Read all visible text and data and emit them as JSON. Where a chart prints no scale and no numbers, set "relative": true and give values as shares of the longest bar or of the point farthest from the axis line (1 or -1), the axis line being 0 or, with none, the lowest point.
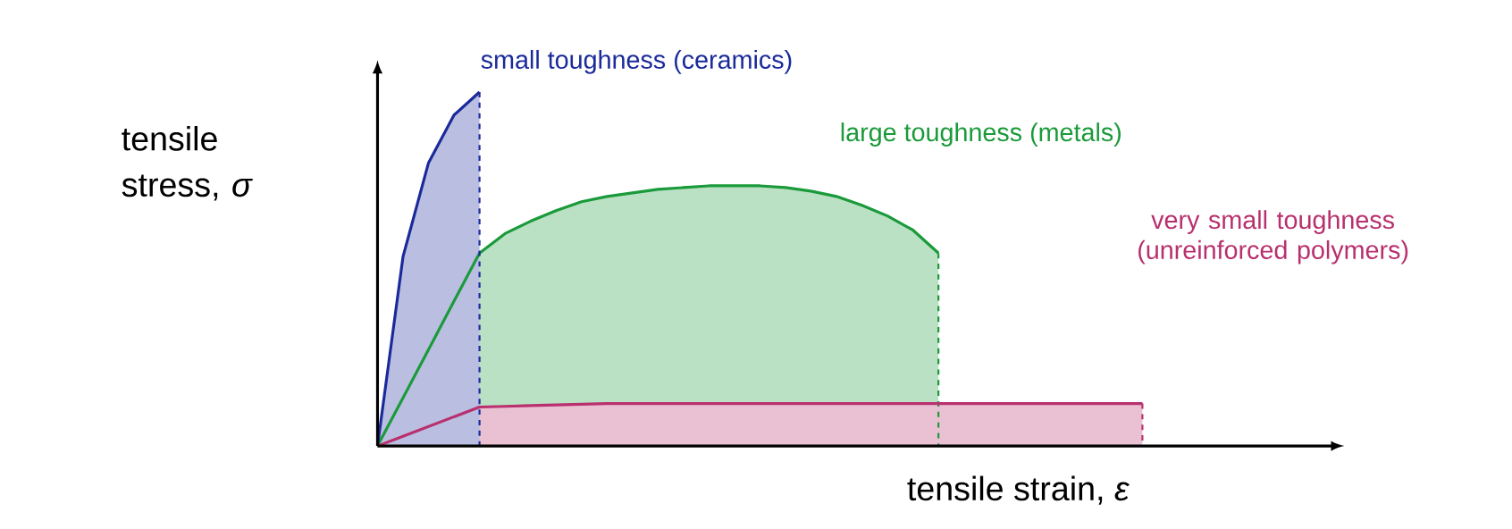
{
  "chart_data": {
    "type": "area",
    "relative": true,
    "xlabel": "tensile strain, *ε*",
    "ylabel": "tensile stress, *σ*",
    "categories": [
      null,
      null,
      null,
      null,
      null,
      null,
      null,
      null,
      null,
      null,
      null,
      null,
      null,
      null,
      null,
      null,
      null,
      null,
      null,
      null,
      null,
      null,
      null,
      null,
      null,
      null,
      null,
      null,
      null,
      null,
      null,
      null,
      null,
      null,
      null,
      null,
      null,
      null
    ],
    "series": [
      {
        "name": "large toughness (metals)",
        "color": "#1a9a3a",
        "values": [
          0,
          0.136,
          0.272,
          0.409,
          0.545,
          0.6,
          0.635,
          0.665,
          0.69,
          0.705,
          0.715,
          0.725,
          0.73,
          0.735,
          0.735,
          0.735,
          0.73,
          0.72,
          0.705,
          0.68,
          0.65,
          0.61,
          0.545,
          null,
          null,
          null,
          null,
          null,
          null,
          null,
          null,
          null,
          null,
          null,
          null,
          null,
          null,
          null
        ]
      },
      {
        "name": "very small toughness (unreinforced polymers)",
        "color": "#b8306e",
        "values": [
          0,
          0.0275,
          0.055,
          0.0825,
          0.11,
          0.112,
          0.114,
          0.116,
          0.118,
          0.12,
          0.12,
          0.12,
          0.12,
          0.12,
          0.12,
          0.12,
          0.12,
          0.12,
          0.12,
          0.12,
          0.12,
          0.12,
          0.12,
          0.12,
          0.12,
          0.12,
          0.12,
          0.12,
          0.12,
          0.12,
          0.12,
          null,
          null,
          null,
          null,
          null,
          null,
          null
        ]
      },
      {
        "name": "small toughness (ceramics)",
        "color": "#1a2a9a",
        "values": [
          0,
          0.535,
          0.8,
          0.935,
          1,
          null,
          null,
          null,
          null,
          null,
          null,
          null,
          null,
          null,
          null,
          null,
          null,
          null,
          null,
          null,
          null,
          null,
          null,
          null,
          null,
          null,
          null,
          null,
          null,
          null,
          null,
          null,
          null,
          null,
          null,
          null,
          null,
          null
        ]
      }
    ]
  }
}
